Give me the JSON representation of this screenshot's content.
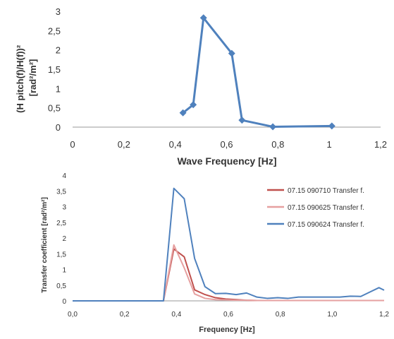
{
  "chart_data": [
    {
      "type": "scatter",
      "xlabel": "Wave Frequency [Hz]",
      "ylabel_line1": "(H pitch(f)/H(f))²",
      "ylabel_line2": "[rad²/m²]",
      "xlim": [
        0,
        1.2
      ],
      "ylim": [
        0,
        3
      ],
      "x_ticks": [
        "0",
        "0,2",
        "0,4",
        "0,6",
        "0,8",
        "1",
        "1,2"
      ],
      "y_ticks": [
        "0",
        "0,5",
        "1",
        "1,5",
        "2",
        "2,5",
        "3"
      ],
      "grid": false,
      "marker": "diamond",
      "color": "#4f81bd",
      "series": [
        {
          "x": [
            0.43,
            0.47,
            0.51,
            0.62,
            0.66,
            0.78,
            1.01
          ],
          "y": [
            0.37,
            0.58,
            2.83,
            1.91,
            0.18,
            0.01,
            0.03
          ]
        }
      ]
    },
    {
      "type": "line",
      "xlabel": "Frequency [Hz]",
      "ylabel": "Transfer coefficient [rad²/m²]",
      "xlim": [
        0,
        1.2
      ],
      "ylim": [
        0,
        4
      ],
      "x_ticks": [
        "0,0",
        "0,2",
        "0,4",
        "0,6",
        "0,8",
        "1,0",
        "1,2"
      ],
      "y_ticks": [
        "0",
        "0,5",
        "1",
        "1,5",
        "2",
        "2,5",
        "3",
        "3,5",
        "4"
      ],
      "grid": false,
      "legend_position": "right",
      "x": [
        0.0,
        0.35,
        0.39,
        0.43,
        0.47,
        0.51,
        0.55,
        0.59,
        0.63,
        0.67,
        0.71,
        0.75,
        0.79,
        0.83,
        0.87,
        0.91,
        0.95,
        0.99,
        1.03,
        1.07,
        1.11,
        1.15,
        1.18,
        1.2
      ],
      "series": [
        {
          "name": "07.15 090710 Transfer f.",
          "color": "#c0504d",
          "values": [
            0,
            0,
            1.65,
            1.4,
            0.35,
            0.2,
            0.1,
            0.06,
            0.04,
            0.02,
            0.01,
            0.01,
            0.01,
            0.01,
            0.01,
            0.01,
            0.01,
            0.01,
            0.01,
            0.01,
            0.01,
            0.01,
            0.01,
            0.01
          ]
        },
        {
          "name": "07.15 090625 Transfer f.",
          "color": "#e6a0a0",
          "values": [
            0,
            0,
            1.78,
            1.05,
            0.22,
            0.08,
            0.04,
            0.03,
            0.02,
            0.02,
            0.01,
            0.01,
            0.01,
            0.01,
            0.01,
            0.01,
            0.01,
            0.01,
            0.01,
            0.01,
            0.01,
            0.01,
            0.01,
            0.01
          ]
        },
        {
          "name": "07.15 090624 Transfer f.",
          "color": "#4f81bd",
          "values": [
            0,
            0,
            3.58,
            3.25,
            1.35,
            0.45,
            0.23,
            0.24,
            0.2,
            0.25,
            0.12,
            0.08,
            0.1,
            0.08,
            0.12,
            0.12,
            0.12,
            0.12,
            0.12,
            0.15,
            0.14,
            0.3,
            0.42,
            0.34
          ]
        }
      ]
    }
  ]
}
